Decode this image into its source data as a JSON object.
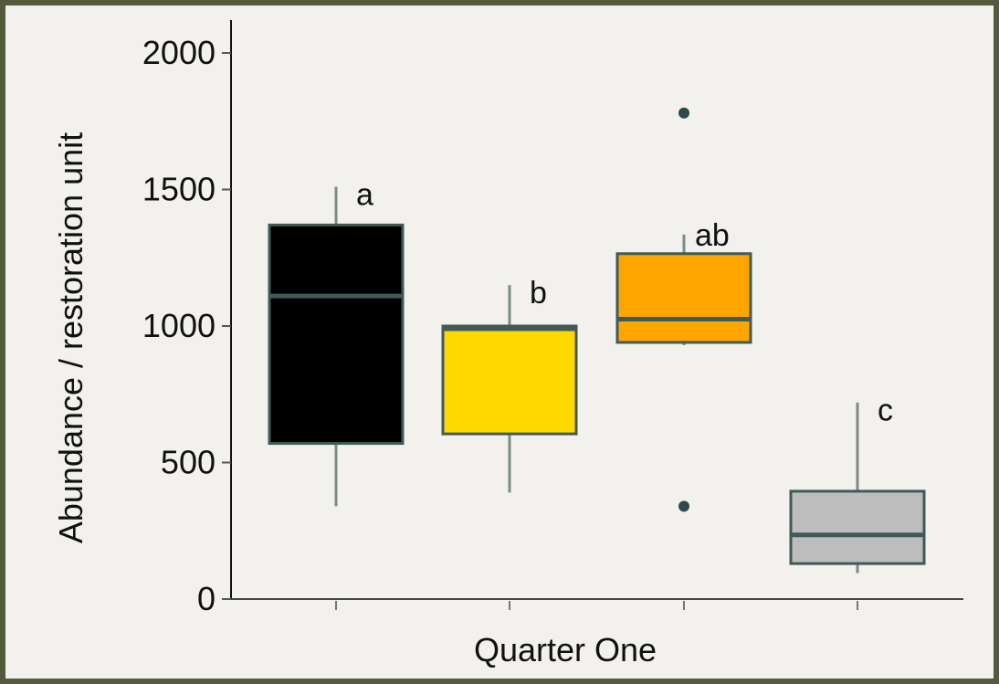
{
  "chart_data": {
    "type": "box",
    "title": "",
    "xlabel": "Quarter One",
    "ylabel": "Abundance / restoration unit",
    "ylim": [
      0,
      2050
    ],
    "yticks": [
      0,
      500,
      1000,
      1500,
      2000
    ],
    "grid": false,
    "legend": "none",
    "boxes": [
      {
        "color": "#000000",
        "q1": 570,
        "median": 1110,
        "q3": 1370,
        "whisker_low": 340,
        "whisker_high": 1510,
        "outliers": [],
        "label": "a"
      },
      {
        "color": "#ffd800",
        "q1": 605,
        "median": 990,
        "q3": 1000,
        "whisker_low": 390,
        "whisker_high": 1150,
        "outliers": [],
        "label": "b"
      },
      {
        "color": "#ffa500",
        "q1": 940,
        "median": 1025,
        "q3": 1265,
        "whisker_low": 930,
        "whisker_high": 1335,
        "outliers": [
          1780,
          340
        ],
        "label": "ab"
      },
      {
        "color": "#bdbdbd",
        "q1": 130,
        "median": 235,
        "q3": 395,
        "whisker_low": 95,
        "whisker_high": 720,
        "outliers": [],
        "label": "c"
      }
    ]
  }
}
